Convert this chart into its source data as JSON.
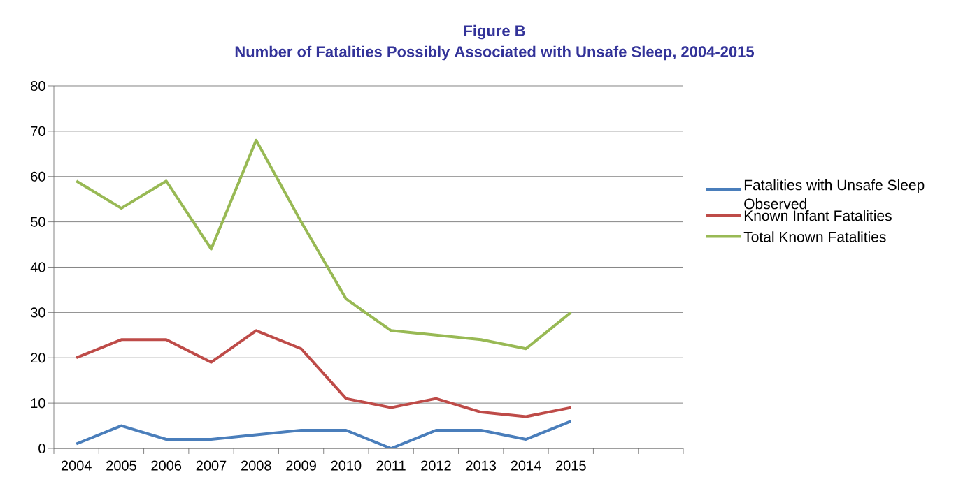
{
  "chart_data": {
    "type": "line",
    "title": "Figure B",
    "subtitle": "Number of Fatalities Possibly  Associated  with Unsafe  Sleep, 2004-2015",
    "categories": [
      "2004",
      "2005",
      "2006",
      "2007",
      "2008",
      "2009",
      "2010",
      "2011",
      "2012",
      "2013",
      "2014",
      "2015",
      null,
      null
    ],
    "series": [
      {
        "name": "Fatalities with Unsafe Sleep Observed",
        "color": "#4a7ebb",
        "values": [
          1,
          5,
          2,
          2,
          3,
          4,
          4,
          0,
          4,
          4,
          2,
          6,
          null,
          null
        ]
      },
      {
        "name": "Known Infant Fatalities",
        "color": "#be4b48",
        "values": [
          20,
          24,
          24,
          19,
          26,
          22,
          11,
          9,
          11,
          8,
          7,
          9,
          null,
          null
        ]
      },
      {
        "name": "Total Known Fatalities",
        "color": "#98b954",
        "values": [
          59,
          53,
          59,
          44,
          68,
          50,
          33,
          26,
          25,
          24,
          22,
          30,
          null,
          null
        ]
      }
    ],
    "ylim": [
      0,
      80
    ],
    "yticks": [
      0,
      10,
      20,
      30,
      40,
      50,
      60,
      70,
      80
    ],
    "grid": "y",
    "legend": "right",
    "marker": "none",
    "line_style": "solid"
  }
}
